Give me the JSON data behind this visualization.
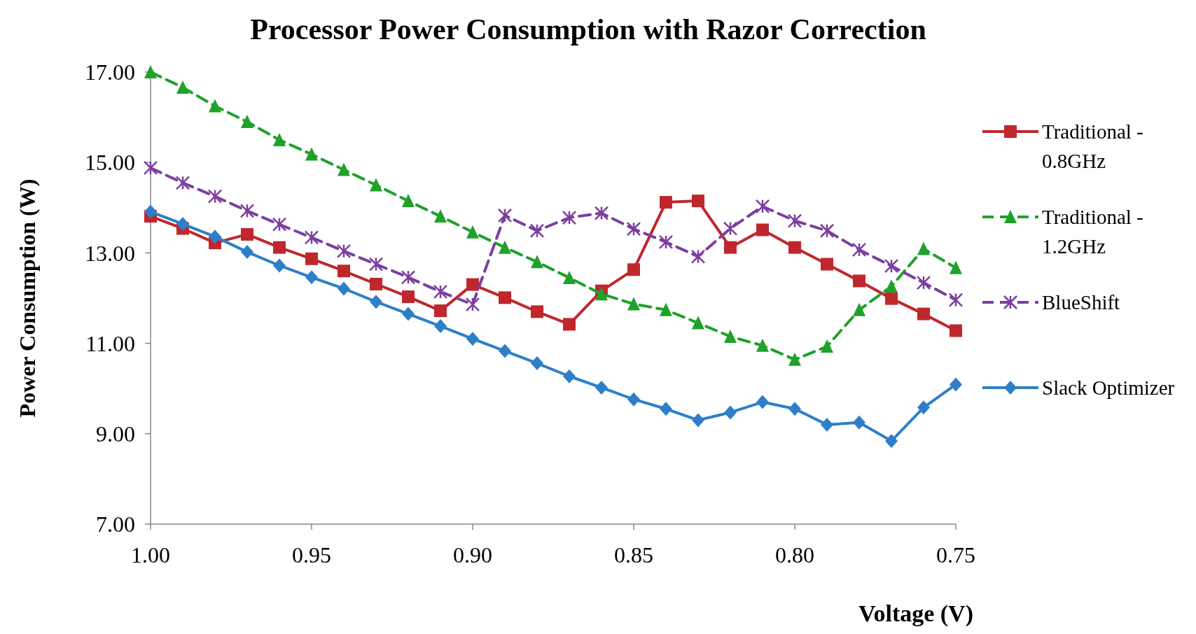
{
  "chart_data": {
    "type": "line",
    "title": "Processor Power Consumption with Razor Correction",
    "xlabel": "Voltage (V)",
    "ylabel": "Power Consumption (W)",
    "x": [
      1.0,
      0.99,
      0.98,
      0.97,
      0.96,
      0.95,
      0.94,
      0.93,
      0.92,
      0.91,
      0.9,
      0.89,
      0.88,
      0.87,
      0.86,
      0.85,
      0.84,
      0.83,
      0.82,
      0.81,
      0.8,
      0.79,
      0.78,
      0.77,
      0.76,
      0.75
    ],
    "xlim": [
      1.0,
      0.75
    ],
    "xticks": [
      {
        "value": 1.0,
        "label": "1.00"
      },
      {
        "value": 0.95,
        "label": "0.95"
      },
      {
        "value": 0.9,
        "label": "0.90"
      },
      {
        "value": 0.85,
        "label": "0.85"
      },
      {
        "value": 0.8,
        "label": "0.80"
      },
      {
        "value": 0.75,
        "label": "0.75"
      }
    ],
    "ylim": [
      7,
      17
    ],
    "yticks": [
      {
        "value": 7,
        "label": "7.00"
      },
      {
        "value": 9,
        "label": "9.00"
      },
      {
        "value": 11,
        "label": "11.00"
      },
      {
        "value": 13,
        "label": "13.00"
      },
      {
        "value": 15,
        "label": "15.00"
      },
      {
        "value": 17,
        "label": "17.00"
      }
    ],
    "grid": false,
    "legend": "right",
    "series": [
      {
        "name": "Traditional - 0.8GHz",
        "color": "#c0272d",
        "marker": "square",
        "line_style": "solid",
        "values": [
          13.81,
          13.54,
          13.22,
          13.41,
          13.12,
          12.87,
          12.6,
          12.31,
          12.03,
          11.72,
          12.3,
          12.01,
          11.7,
          11.42,
          12.16,
          12.63,
          14.12,
          14.15,
          13.12,
          13.51,
          13.12,
          12.75,
          12.38,
          11.99,
          11.65,
          11.28
        ]
      },
      {
        "name": "Traditional - 1.2GHz",
        "color": "#1fa12a",
        "marker": "triangle",
        "line_style": "dashed",
        "values": [
          17.0,
          16.66,
          16.25,
          15.9,
          15.5,
          15.18,
          14.84,
          14.5,
          14.15,
          13.81,
          13.46,
          13.12,
          12.8,
          12.45,
          12.09,
          11.87,
          11.74,
          11.45,
          11.15,
          10.95,
          10.64,
          10.93,
          11.74,
          12.26,
          13.09,
          12.67
        ]
      },
      {
        "name": "BlueShift",
        "color": "#7b3fa0",
        "marker": "cross",
        "line_style": "dashed",
        "values": [
          14.88,
          14.55,
          14.25,
          13.93,
          13.63,
          13.34,
          13.04,
          12.75,
          12.46,
          12.14,
          11.86,
          13.83,
          13.49,
          13.78,
          13.88,
          13.53,
          13.24,
          12.92,
          13.54,
          14.03,
          13.71,
          13.49,
          13.07,
          12.71,
          12.34,
          11.96
        ]
      },
      {
        "name": "Slack Optimizer",
        "color": "#2e7fc8",
        "marker": "diamond",
        "line_style": "solid",
        "values": [
          13.91,
          13.64,
          13.36,
          13.02,
          12.72,
          12.46,
          12.21,
          11.92,
          11.65,
          11.38,
          11.1,
          10.83,
          10.56,
          10.27,
          10.02,
          9.76,
          9.55,
          9.3,
          9.47,
          9.7,
          9.55,
          9.2,
          9.25,
          8.84,
          9.58,
          10.09
        ]
      }
    ]
  }
}
